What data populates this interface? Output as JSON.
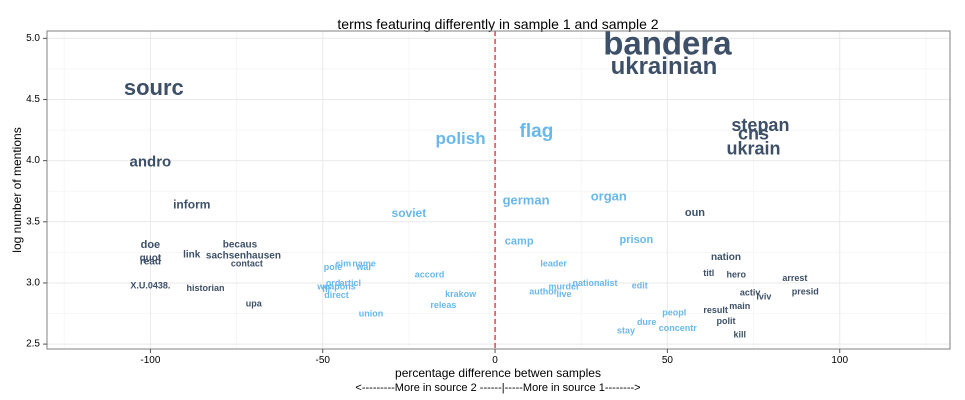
{
  "chart_data": {
    "type": "scatter",
    "title": "terms featuring differently in sample 1 and sample 2",
    "xlabel": "percentage difference betwen samples",
    "xlabel2": "<---------More in source 2 ------|-----More in source 1-------->",
    "ylabel": "log number of mentions",
    "xlim": [
      -130,
      132
    ],
    "ylim": [
      2.46,
      5.06
    ],
    "xticks": [
      -100,
      -50,
      0,
      50,
      100
    ],
    "yticks": [
      2.5,
      3.0,
      3.5,
      4.0,
      4.5,
      5.0
    ],
    "xtick_labels": [
      "-100",
      "-50",
      "0",
      "50",
      "100"
    ],
    "ytick_labels": [
      "2.5",
      "3.0",
      "3.5",
      "4.0",
      "4.5",
      "5.0"
    ],
    "grid": true,
    "reference_line": {
      "x": 0,
      "color": "#d7191c",
      "style": "dashed"
    },
    "colors": {
      "dark": "#3d5068",
      "light": "#6ab8ea",
      "panel_border": "#808080",
      "grid": "#e9e9e9"
    },
    "points": [
      {
        "label": "bandera",
        "x": 50,
        "y": 4.96,
        "size": 33,
        "color": "dark"
      },
      {
        "label": "ukrainian",
        "x": 49,
        "y": 4.77,
        "size": 24,
        "color": "dark"
      },
      {
        "label": "sourc",
        "x": -99,
        "y": 4.6,
        "size": 22,
        "color": "dark"
      },
      {
        "label": "stepan",
        "x": 77,
        "y": 4.29,
        "size": 18,
        "color": "dark"
      },
      {
        "label": "cns",
        "x": 75,
        "y": 4.22,
        "size": 18,
        "color": "dark"
      },
      {
        "label": "ukrain",
        "x": 75,
        "y": 4.1,
        "size": 18,
        "color": "dark"
      },
      {
        "label": "flag",
        "x": 12,
        "y": 4.24,
        "size": 19,
        "color": "light"
      },
      {
        "label": "polish",
        "x": -10,
        "y": 4.18,
        "size": 17,
        "color": "light"
      },
      {
        "label": "andro",
        "x": -100,
        "y": 3.99,
        "size": 15,
        "color": "dark"
      },
      {
        "label": "organ",
        "x": 33,
        "y": 3.71,
        "size": 13,
        "color": "light"
      },
      {
        "label": "german",
        "x": 9,
        "y": 3.68,
        "size": 13,
        "color": "light"
      },
      {
        "label": "inform",
        "x": -88,
        "y": 3.64,
        "size": 12,
        "color": "dark"
      },
      {
        "label": "soviet",
        "x": -25,
        "y": 3.57,
        "size": 12,
        "color": "light"
      },
      {
        "label": "oun",
        "x": 58,
        "y": 3.57,
        "size": 11,
        "color": "dark"
      },
      {
        "label": "camp",
        "x": 7,
        "y": 3.34,
        "size": 11,
        "color": "light"
      },
      {
        "label": "prison",
        "x": 41,
        "y": 3.35,
        "size": 11,
        "color": "light"
      },
      {
        "label": "doe",
        "x": -100,
        "y": 3.31,
        "size": 11,
        "color": "dark"
      },
      {
        "label": "becaus",
        "x": -74,
        "y": 3.31,
        "size": 10,
        "color": "dark"
      },
      {
        "label": "link",
        "x": -88,
        "y": 3.23,
        "size": 10,
        "color": "dark"
      },
      {
        "label": "sachsenhausen",
        "x": -73,
        "y": 3.22,
        "size": 10,
        "color": "dark"
      },
      {
        "label": "quot",
        "x": -100,
        "y": 3.2,
        "size": 10,
        "color": "dark"
      },
      {
        "label": "read",
        "x": -100,
        "y": 3.17,
        "size": 10,
        "color": "dark"
      },
      {
        "label": "contact",
        "x": -72,
        "y": 3.16,
        "size": 9,
        "color": "dark"
      },
      {
        "label": "nation",
        "x": 67,
        "y": 3.21,
        "size": 10,
        "color": "dark"
      },
      {
        "label": "leader",
        "x": 17,
        "y": 3.16,
        "size": 9,
        "color": "light"
      },
      {
        "label": "sim",
        "x": -44,
        "y": 3.16,
        "size": 9,
        "color": "light"
      },
      {
        "label": "name",
        "x": -38,
        "y": 3.16,
        "size": 9,
        "color": "light"
      },
      {
        "label": "pole",
        "x": -47,
        "y": 3.13,
        "size": 9,
        "color": "light"
      },
      {
        "label": "war",
        "x": -38,
        "y": 3.13,
        "size": 9,
        "color": "light"
      },
      {
        "label": "titl",
        "x": 62,
        "y": 3.08,
        "size": 9,
        "color": "dark"
      },
      {
        "label": "hero",
        "x": 70,
        "y": 3.07,
        "size": 9,
        "color": "dark"
      },
      {
        "label": "accord",
        "x": -19,
        "y": 3.07,
        "size": 9,
        "color": "light"
      },
      {
        "label": "arrest",
        "x": 87,
        "y": 3.04,
        "size": 9,
        "color": "dark"
      },
      {
        "label": "nationalist",
        "x": 29,
        "y": 3.0,
        "size": 9,
        "color": "light"
      },
      {
        "label": "edit",
        "x": 42,
        "y": 2.98,
        "size": 9,
        "color": "light"
      },
      {
        "label": "murder",
        "x": 20,
        "y": 2.97,
        "size": 9,
        "color": "light"
      },
      {
        "label": "ord",
        "x": -47,
        "y": 3.0,
        "size": 9,
        "color": "light"
      },
      {
        "label": "articl",
        "x": -42,
        "y": 3.0,
        "size": 9,
        "color": "light"
      },
      {
        "label": "weapons",
        "x": -46,
        "y": 2.97,
        "size": 9,
        "color": "light"
      },
      {
        "label": "fil",
        "x": -49,
        "y": 2.95,
        "size": 9,
        "color": "light"
      },
      {
        "label": "X.U.0438.",
        "x": -100,
        "y": 2.98,
        "size": 9,
        "color": "dark"
      },
      {
        "label": "historian",
        "x": -84,
        "y": 2.96,
        "size": 9,
        "color": "dark"
      },
      {
        "label": "author",
        "x": 14,
        "y": 2.93,
        "size": 9,
        "color": "light"
      },
      {
        "label": "live",
        "x": 20,
        "y": 2.91,
        "size": 9,
        "color": "light"
      },
      {
        "label": "activ",
        "x": 74,
        "y": 2.92,
        "size": 9,
        "color": "dark"
      },
      {
        "label": "lviv",
        "x": 78,
        "y": 2.89,
        "size": 9,
        "color": "dark"
      },
      {
        "label": "presid",
        "x": 90,
        "y": 2.93,
        "size": 9,
        "color": "dark"
      },
      {
        "label": "direct",
        "x": -46,
        "y": 2.9,
        "size": 9,
        "color": "light"
      },
      {
        "label": "krakow",
        "x": -10,
        "y": 2.91,
        "size": 9,
        "color": "light"
      },
      {
        "label": "main",
        "x": 71,
        "y": 2.81,
        "size": 9,
        "color": "dark"
      },
      {
        "label": "upa",
        "x": -70,
        "y": 2.83,
        "size": 9,
        "color": "dark"
      },
      {
        "label": "releas",
        "x": -15,
        "y": 2.82,
        "size": 9,
        "color": "light"
      },
      {
        "label": "result",
        "x": 64,
        "y": 2.78,
        "size": 9,
        "color": "dark"
      },
      {
        "label": "peopl",
        "x": 52,
        "y": 2.76,
        "size": 9,
        "color": "light"
      },
      {
        "label": "union",
        "x": -36,
        "y": 2.75,
        "size": 9,
        "color": "light"
      },
      {
        "label": "polit",
        "x": 67,
        "y": 2.69,
        "size": 9,
        "color": "dark"
      },
      {
        "label": "dure",
        "x": 44,
        "y": 2.68,
        "size": 9,
        "color": "light"
      },
      {
        "label": "concentr",
        "x": 53,
        "y": 2.63,
        "size": 9,
        "color": "light"
      },
      {
        "label": "stay",
        "x": 38,
        "y": 2.61,
        "size": 9,
        "color": "light"
      },
      {
        "label": "kill",
        "x": 71,
        "y": 2.58,
        "size": 9,
        "color": "dark"
      }
    ]
  }
}
